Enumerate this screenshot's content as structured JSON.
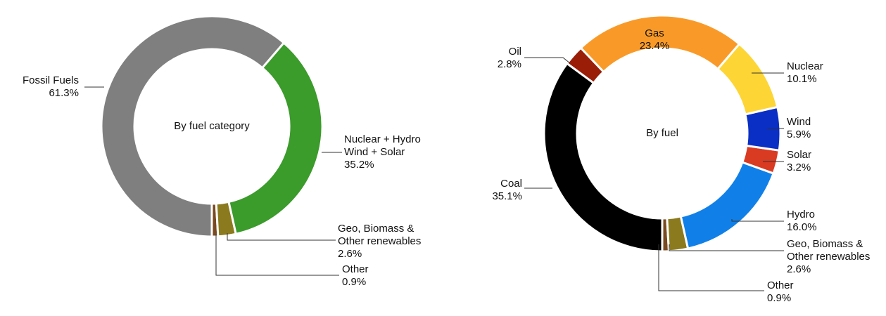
{
  "chart_data": [
    {
      "type": "donut",
      "center_label": "By fuel category",
      "categories": [
        "Other",
        "Geo, Biomass &\nOther renewables",
        "Nuclear + Hydro\nWind + Solar",
        "Fossil Fuels"
      ],
      "values": [
        0.9,
        2.6,
        35.2,
        61.3
      ],
      "value_labels": [
        "0.9%",
        "2.6%",
        "35.2%",
        "61.3%"
      ],
      "colors": [
        "#7a4a20",
        "#8b7a1e",
        "#3b9b2b",
        "#7f7f7f"
      ]
    },
    {
      "type": "donut",
      "center_label": "By fuel",
      "categories": [
        "Other",
        "Geo, Biomass &\nOther renewables",
        "Hydro",
        "Solar",
        "Wind",
        "Nuclear",
        "Gas",
        "Oil",
        "Coal"
      ],
      "values": [
        0.9,
        2.6,
        16.0,
        3.2,
        5.9,
        10.1,
        23.4,
        2.8,
        35.1
      ],
      "value_labels": [
        "0.9%",
        "2.6%",
        "16.0%",
        "3.2%",
        "5.9%",
        "10.1%",
        "23.4%",
        "2.8%",
        "35.1%"
      ],
      "colors": [
        "#7a4a20",
        "#8b7a1e",
        "#1080e8",
        "#d93a22",
        "#0a2fc4",
        "#fdd535",
        "#f99a28",
        "#9a1d08",
        "#000000"
      ]
    }
  ]
}
